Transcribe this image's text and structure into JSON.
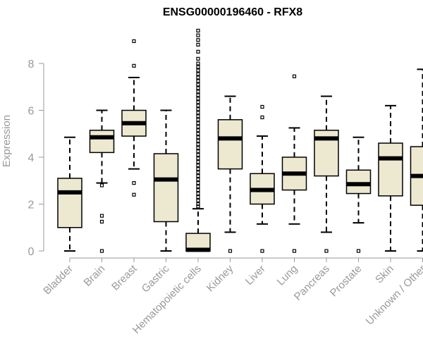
{
  "chart_data": {
    "type": "box",
    "title": "ENSG00000196460 - RFX8",
    "xlabel": "",
    "ylabel": "Expression",
    "ylim": [
      0,
      9.6
    ],
    "yticks": [
      0,
      2,
      4,
      6,
      8
    ],
    "box_fill": "#ede8d0",
    "box_stroke": "#000000",
    "axis_color": "#999999",
    "categories": [
      "Bladder",
      "Brain",
      "Breast",
      "Gastric",
      "Hematopoietic cells",
      "Kidney",
      "Liver",
      "Lung",
      "Pancreas",
      "Prostate",
      "Skin",
      "Unknown / Other"
    ],
    "series": [
      {
        "name": "Bladder",
        "q1": 1.0,
        "median": 2.5,
        "q3": 3.1,
        "whisker_low": 0.0,
        "whisker_high": 4.85,
        "outliers": []
      },
      {
        "name": "Brain",
        "q1": 4.2,
        "median": 4.85,
        "q3": 5.15,
        "whisker_low": 2.9,
        "whisker_high": 6.0,
        "outliers": [
          2.8,
          1.5,
          1.25,
          0.0
        ]
      },
      {
        "name": "Breast",
        "q1": 4.9,
        "median": 5.45,
        "q3": 6.0,
        "whisker_low": 3.5,
        "whisker_high": 7.4,
        "outliers": [
          7.9,
          8.95,
          2.9,
          2.4
        ]
      },
      {
        "name": "Gastric",
        "q1": 1.25,
        "median": 3.05,
        "q3": 4.15,
        "whisker_low": 0.0,
        "whisker_high": 6.0,
        "outliers": []
      },
      {
        "name": "Hematopoietic cells",
        "q1": 0.0,
        "median": 0.05,
        "q3": 0.75,
        "whisker_low": 0.0,
        "whisker_high": 1.8,
        "outliers": [
          1.9,
          2.0,
          2.15,
          2.3,
          2.45,
          2.6,
          2.75,
          2.9,
          3.05,
          3.2,
          3.35,
          3.5,
          3.65,
          3.8,
          3.95,
          4.1,
          4.25,
          4.4,
          4.55,
          4.7,
          4.85,
          5.0,
          5.15,
          5.3,
          5.45,
          5.6,
          5.75,
          5.9,
          6.05,
          6.2,
          6.35,
          6.5,
          6.65,
          6.8,
          6.95,
          7.1,
          7.25,
          7.4,
          7.55,
          7.7,
          7.85,
          8.0,
          8.2,
          8.5,
          8.8,
          9.0,
          9.2,
          9.4
        ]
      },
      {
        "name": "Kidney",
        "q1": 3.5,
        "median": 4.8,
        "q3": 5.6,
        "whisker_low": 0.8,
        "whisker_high": 6.6,
        "outliers": [
          0.0
        ]
      },
      {
        "name": "Liver",
        "q1": 2.0,
        "median": 2.6,
        "q3": 3.3,
        "whisker_low": 1.15,
        "whisker_high": 4.9,
        "outliers": [
          5.7,
          6.15,
          0.0
        ]
      },
      {
        "name": "Lung",
        "q1": 2.6,
        "median": 3.3,
        "q3": 4.0,
        "whisker_low": 1.15,
        "whisker_high": 5.25,
        "outliers": [
          7.45,
          0.0
        ]
      },
      {
        "name": "Pancreas",
        "q1": 3.2,
        "median": 4.8,
        "q3": 5.15,
        "whisker_low": 0.8,
        "whisker_high": 6.6,
        "outliers": [
          0.0
        ]
      },
      {
        "name": "Prostate",
        "q1": 2.45,
        "median": 2.85,
        "q3": 3.45,
        "whisker_low": 1.2,
        "whisker_high": 4.85,
        "outliers": [
          0.0
        ]
      },
      {
        "name": "Skin",
        "q1": 2.35,
        "median": 3.95,
        "q3": 4.6,
        "whisker_low": 0.0,
        "whisker_high": 6.2,
        "outliers": []
      },
      {
        "name": "Unknown / Other",
        "q1": 1.95,
        "median": 3.2,
        "q3": 4.45,
        "whisker_low": 0.0,
        "whisker_high": 7.75,
        "outliers": []
      }
    ]
  }
}
